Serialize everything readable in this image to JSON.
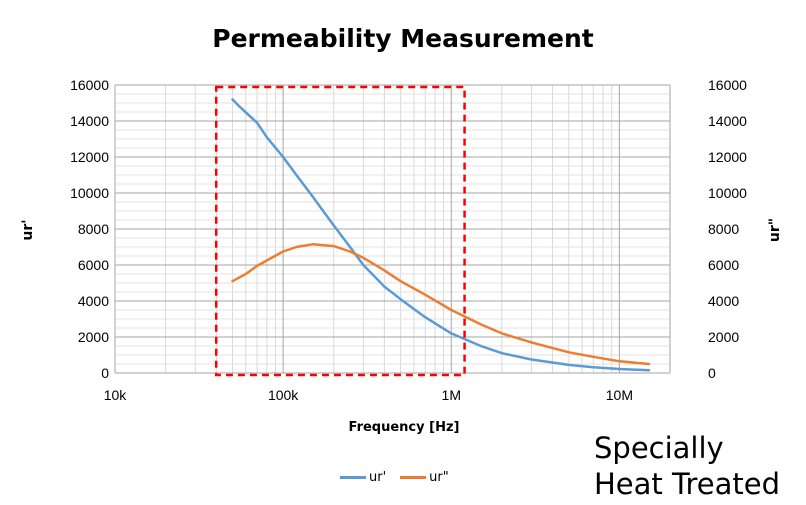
{
  "chart_data": {
    "type": "line",
    "title": "Permeability Measurement",
    "xlabel": "Frequency [Hz]",
    "ylabel_left": "ur'",
    "ylabel_right": "ur\"",
    "x_scale": "log",
    "xlim": [
      10000,
      20000000
    ],
    "ylim": [
      0,
      16000
    ],
    "x_ticks": [
      {
        "value": 10000,
        "label": "10k"
      },
      {
        "value": 100000,
        "label": "100k"
      },
      {
        "value": 1000000,
        "label": "1M"
      },
      {
        "value": 10000000,
        "label": "10M"
      }
    ],
    "y_ticks": [
      0,
      2000,
      4000,
      6000,
      8000,
      10000,
      12000,
      14000,
      16000
    ],
    "y_tick_labels": [
      "0",
      "2000",
      "4000",
      "6000",
      "8000",
      "10000",
      "12000",
      "14000",
      "16000"
    ],
    "grid": true,
    "legend_position": "bottom",
    "series": [
      {
        "name": "ur'",
        "color": "#5b9bd5",
        "x": [
          50000,
          55000,
          70000,
          80000,
          100000,
          120000,
          150000,
          200000,
          250000,
          300000,
          400000,
          500000,
          700000,
          1000000,
          1500000,
          2000000,
          3000000,
          5000000,
          7000000,
          10000000,
          15000000
        ],
        "y": [
          15200,
          14800,
          13900,
          13100,
          12000,
          11000,
          9800,
          8200,
          7000,
          6000,
          4800,
          4100,
          3100,
          2200,
          1500,
          1100,
          750,
          450,
          320,
          220,
          150
        ]
      },
      {
        "name": "ur\"",
        "color": "#ed7d31",
        "x": [
          50000,
          60000,
          70000,
          80000,
          100000,
          120000,
          150000,
          200000,
          250000,
          300000,
          400000,
          500000,
          700000,
          1000000,
          1500000,
          2000000,
          3000000,
          5000000,
          7000000,
          10000000,
          15000000
        ],
        "y": [
          5100,
          5500,
          5950,
          6250,
          6750,
          7000,
          7150,
          7050,
          6750,
          6400,
          5700,
          5100,
          4350,
          3500,
          2700,
          2200,
          1700,
          1150,
          900,
          650,
          500
        ]
      }
    ],
    "highlight_box": {
      "x_range": [
        40000,
        1200000
      ],
      "y_range": [
        0,
        16000
      ],
      "style": "red dashed"
    }
  },
  "annotation": {
    "line1": "Specially",
    "line2": "Heat Treated"
  }
}
